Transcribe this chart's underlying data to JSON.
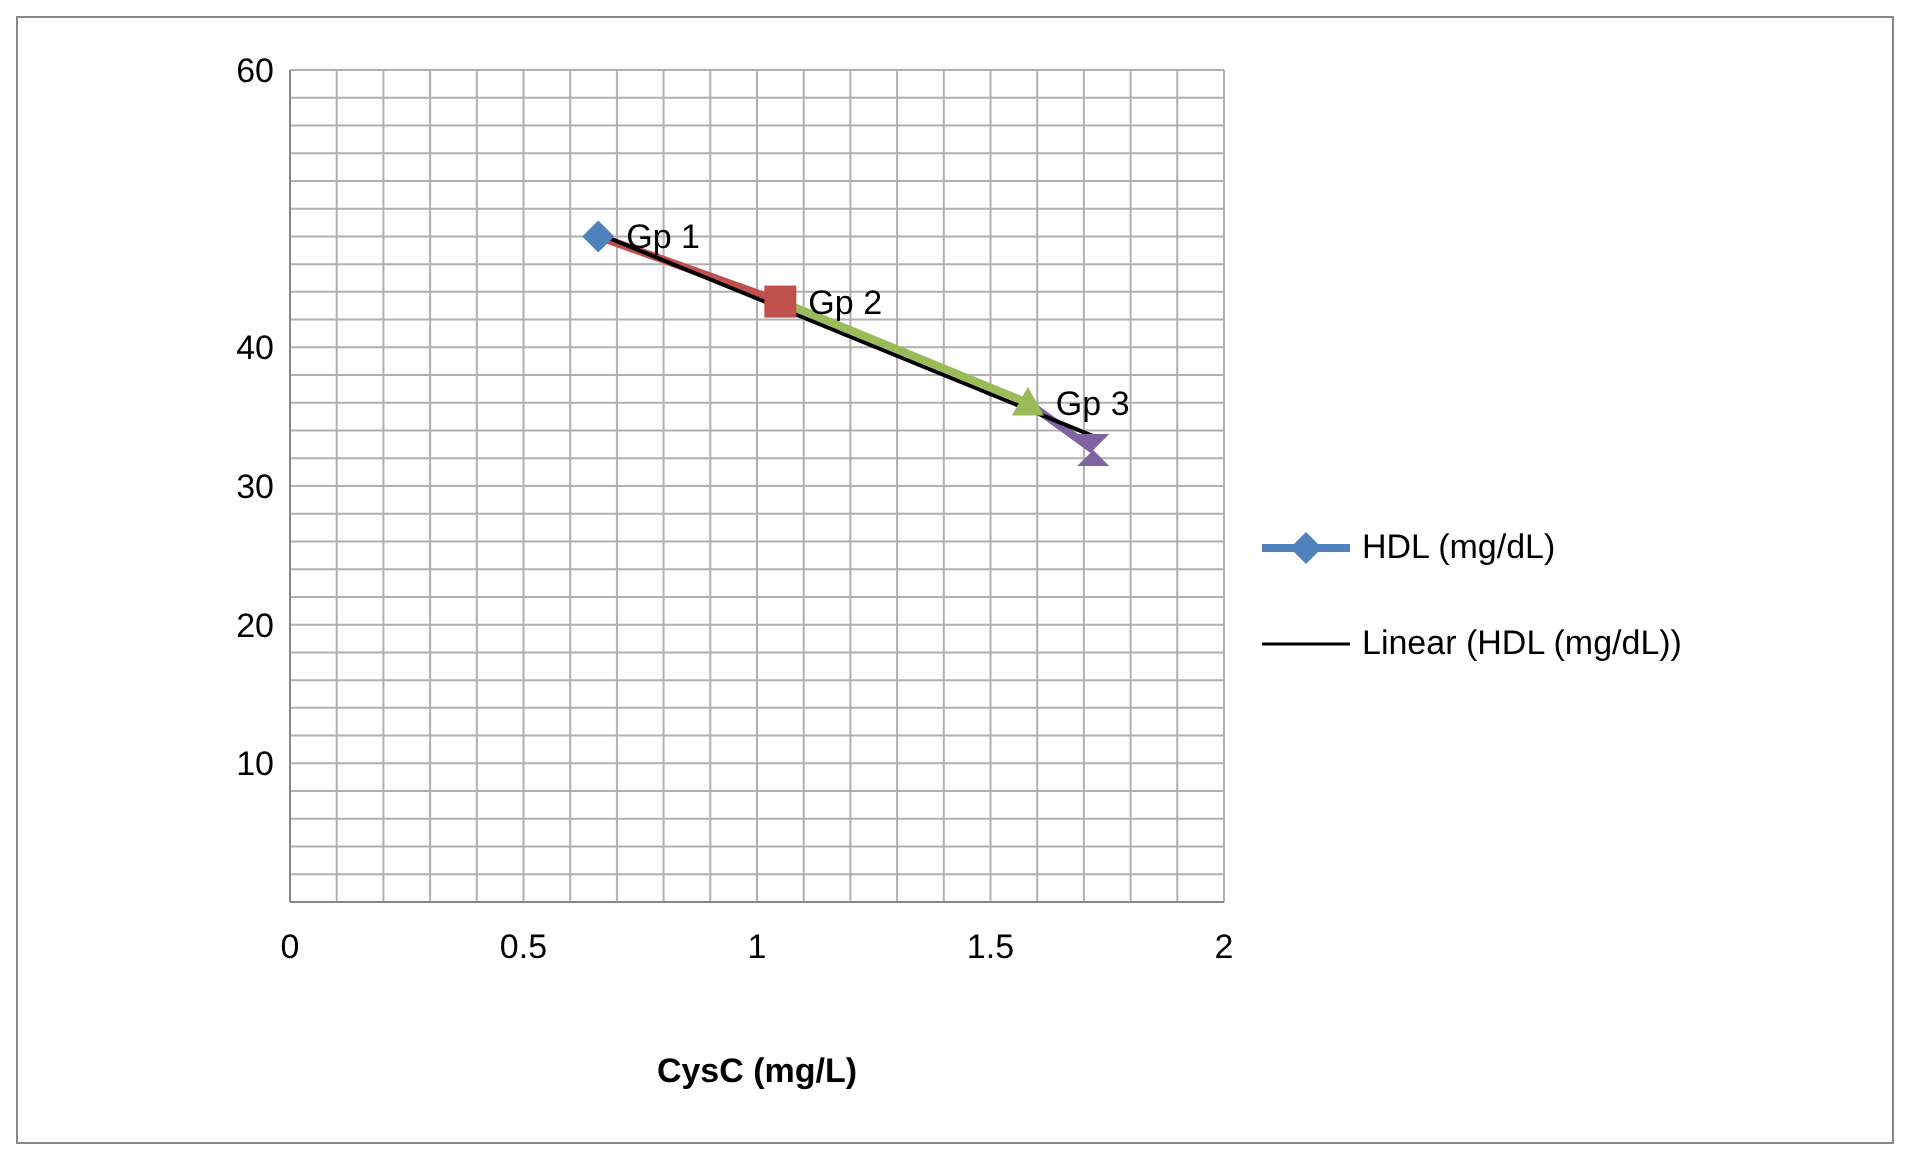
{
  "chart_data": {
    "type": "line",
    "xlabel": "CysC (mg/L)",
    "xlim": [
      0,
      2
    ],
    "ylim": [
      0,
      60
    ],
    "xticks": [
      0,
      {
        "value": 0.1,
        "label": null
      },
      {
        "value": 0.2,
        "label": null
      },
      {
        "value": 0.3,
        "label": null
      },
      {
        "value": 0.4,
        "label": null
      },
      0.5,
      {
        "value": 0.6,
        "label": null
      },
      {
        "value": 0.7,
        "label": null
      },
      {
        "value": 0.8,
        "label": null
      },
      {
        "value": 0.9,
        "label": null
      },
      1,
      {
        "value": 1.1,
        "label": null
      },
      {
        "value": 1.2,
        "label": null
      },
      {
        "value": 1.3,
        "label": null
      },
      {
        "value": 1.4,
        "label": null
      },
      1.5,
      {
        "value": 1.6,
        "label": null
      },
      {
        "value": 1.7,
        "label": null
      },
      {
        "value": 1.8,
        "label": null
      },
      {
        "value": 1.9,
        "label": null
      },
      2
    ],
    "yticks": [
      {
        "value": 0,
        "label": null
      },
      {
        "value": 2,
        "label": null
      },
      {
        "value": 4,
        "label": null
      },
      {
        "value": 6,
        "label": null
      },
      {
        "value": 8,
        "label": null
      },
      10,
      {
        "value": 12,
        "label": null
      },
      {
        "value": 14,
        "label": null
      },
      {
        "value": 16,
        "label": null
      },
      {
        "value": 18,
        "label": null
      },
      20,
      {
        "value": 22,
        "label": null
      },
      {
        "value": 24,
        "label": null
      },
      {
        "value": 26,
        "label": null
      },
      {
        "value": 28,
        "label": null
      },
      30,
      {
        "value": 32,
        "label": null
      },
      {
        "value": 34,
        "label": null
      },
      {
        "value": 36,
        "label": null
      },
      {
        "value": 38,
        "label": null
      },
      40,
      {
        "value": 42,
        "label": null
      },
      {
        "value": 44,
        "label": null
      },
      {
        "value": 46,
        "label": null
      },
      {
        "value": 48,
        "label": null
      },
      {
        "value": 50,
        "label": null
      },
      {
        "value": 52,
        "label": null
      },
      {
        "value": 54,
        "label": null
      },
      {
        "value": 56,
        "label": null
      },
      {
        "value": 58,
        "label": null
      },
      60
    ],
    "grid": true,
    "legend": "right",
    "marker": "diamond",
    "series": [
      {
        "name": "HDL (mg/dL)",
        "color": "#4f81bd",
        "colors": [
          "#4f81bd",
          "#c0504d",
          "#9bbb59",
          "#8064a2"
        ],
        "x": [
          0.66,
          1.05,
          1.58,
          1.72
        ],
        "values": [
          48.0,
          43.3,
          36.0,
          32.6
        ]
      },
      {
        "name": "Linear (HDL (mg/dL))",
        "type": "line",
        "color": "#000000",
        "marker": "none",
        "x": [
          0.66,
          1.72
        ],
        "values": [
          48.2,
          33.6
        ]
      }
    ],
    "annotations": [
      {
        "text": "Gp 1",
        "x": 0.66,
        "y": 48.0
      },
      {
        "text": "Gp 2",
        "x": 1.05,
        "y": 43.3
      },
      {
        "text": "Gp 3",
        "x": 1.58,
        "y": 36.0
      }
    ]
  }
}
